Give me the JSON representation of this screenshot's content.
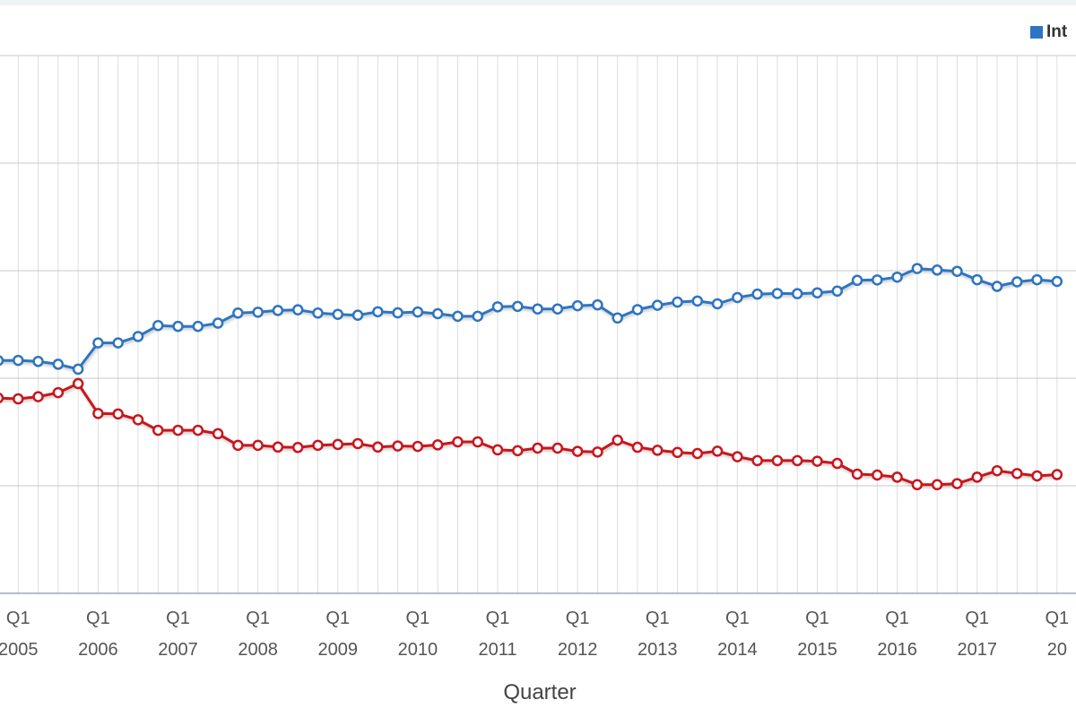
{
  "legend": {
    "items": [
      {
        "label": "Int",
        "color": "#2e74c0"
      }
    ]
  },
  "chart_data": {
    "type": "line",
    "xlabel": "Quarter",
    "ylabel": "",
    "grid": true,
    "legend_position": "top-right",
    "x_ticks": [
      {
        "quarter": "Q1",
        "year": "2005"
      },
      {
        "quarter": "Q1",
        "year": "2006"
      },
      {
        "quarter": "Q1",
        "year": "2007"
      },
      {
        "quarter": "Q1",
        "year": "2008"
      },
      {
        "quarter": "Q1",
        "year": "2009"
      },
      {
        "quarter": "Q1",
        "year": "2010"
      },
      {
        "quarter": "Q1",
        "year": "2011"
      },
      {
        "quarter": "Q1",
        "year": "2012"
      },
      {
        "quarter": "Q1",
        "year": "2013"
      },
      {
        "quarter": "Q1",
        "year": "2014"
      },
      {
        "quarter": "Q1",
        "year": "2015"
      },
      {
        "quarter": "Q1",
        "year": "2016"
      },
      {
        "quarter": "Q1",
        "year": "2017"
      },
      {
        "quarter": "Q1",
        "year": "20"
      }
    ],
    "x": [
      "2004 Q4",
      "2005 Q1",
      "2005 Q2",
      "2005 Q3",
      "2005 Q4",
      "2006 Q1",
      "2006 Q2",
      "2006 Q3",
      "2006 Q4",
      "2007 Q1",
      "2007 Q2",
      "2007 Q3",
      "2007 Q4",
      "2008 Q1",
      "2008 Q2",
      "2008 Q3",
      "2008 Q4",
      "2009 Q1",
      "2009 Q2",
      "2009 Q3",
      "2009 Q4",
      "2010 Q1",
      "2010 Q2",
      "2010 Q3",
      "2010 Q4",
      "2011 Q1",
      "2011 Q2",
      "2011 Q3",
      "2011 Q4",
      "2012 Q1",
      "2012 Q2",
      "2012 Q3",
      "2012 Q4",
      "2013 Q1",
      "2013 Q2",
      "2013 Q3",
      "2013 Q4",
      "2014 Q1",
      "2014 Q2",
      "2014 Q3",
      "2014 Q4",
      "2015 Q1",
      "2015 Q2",
      "2015 Q3",
      "2015 Q4",
      "2016 Q1",
      "2016 Q2",
      "2016 Q3",
      "2016 Q4",
      "2017 Q1",
      "2017 Q2",
      "2017 Q3",
      "2017 Q4",
      "2018 Q1"
    ],
    "series": [
      {
        "name": "Int",
        "color": "#2e74c0",
        "values": [
          0.582,
          0.583,
          0.578,
          0.565,
          0.542,
          0.664,
          0.664,
          0.694,
          0.745,
          0.741,
          0.741,
          0.756,
          0.803,
          0.807,
          0.815,
          0.818,
          0.803,
          0.797,
          0.793,
          0.809,
          0.804,
          0.808,
          0.8,
          0.788,
          0.788,
          0.832,
          0.834,
          0.822,
          0.822,
          0.837,
          0.841,
          0.78,
          0.819,
          0.839,
          0.854,
          0.859,
          0.846,
          0.875,
          0.891,
          0.894,
          0.893,
          0.897,
          0.905,
          0.955,
          0.957,
          0.97,
          1.01,
          1.003,
          0.997,
          0.958,
          0.927,
          0.948,
          0.958,
          0.95
        ]
      },
      {
        "name": "",
        "color": "#c8161d",
        "values": [
          0.408,
          0.404,
          0.414,
          0.433,
          0.475,
          0.336,
          0.334,
          0.307,
          0.258,
          0.258,
          0.258,
          0.242,
          0.188,
          0.188,
          0.18,
          0.178,
          0.188,
          0.192,
          0.196,
          0.18,
          0.185,
          0.183,
          0.19,
          0.204,
          0.204,
          0.167,
          0.163,
          0.175,
          0.175,
          0.16,
          0.157,
          0.212,
          0.179,
          0.165,
          0.155,
          0.15,
          0.161,
          0.135,
          0.117,
          0.117,
          0.117,
          0.114,
          0.104,
          0.054,
          0.05,
          0.04,
          0.005,
          0.005,
          0.01,
          0.04,
          0.07,
          0.057,
          0.046,
          0.052
        ]
      }
    ]
  }
}
